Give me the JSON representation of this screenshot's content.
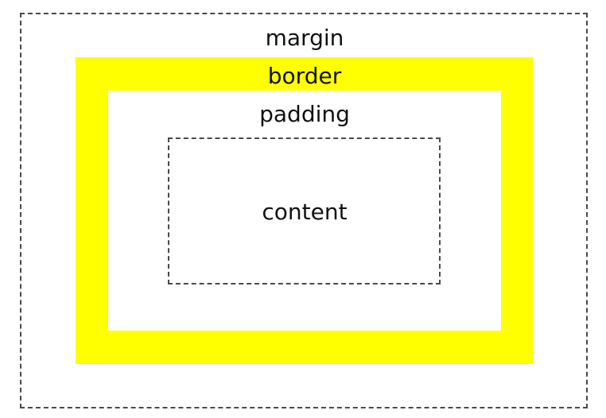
{
  "diagram": {
    "labels": {
      "margin": "margin",
      "border": "border",
      "padding": "padding",
      "content": "content"
    },
    "colors": {
      "border_fill": "#ffff00",
      "dashed_outline": "#4a4a4a",
      "background": "#ffffff"
    }
  }
}
